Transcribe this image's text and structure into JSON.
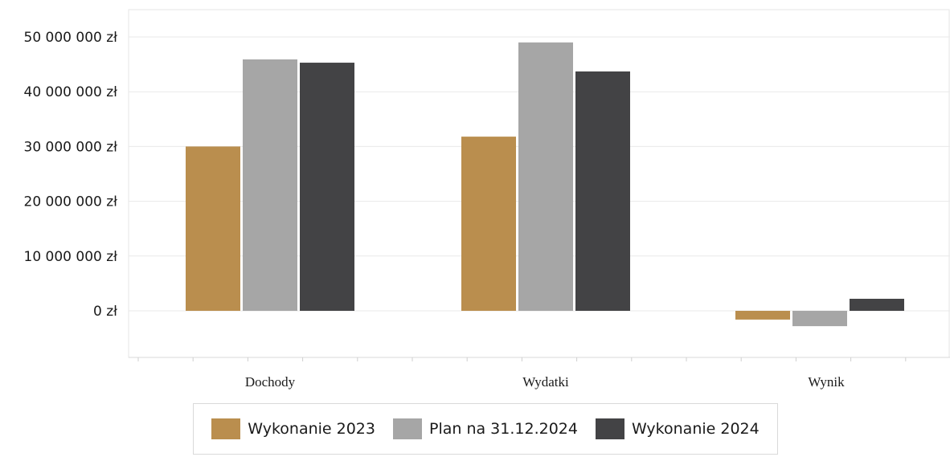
{
  "chart_data": {
    "type": "bar",
    "categories": [
      "Dochody",
      "Wydatki",
      "Wynik"
    ],
    "series": [
      {
        "name": "Wykonanie 2023",
        "color": "#BA8E4E",
        "values": [
          30000000,
          31800000,
          -1600000
        ]
      },
      {
        "name": "Plan na 31.12.2024",
        "color": "#A6A6A6",
        "values": [
          45900000,
          49000000,
          -2800000
        ]
      },
      {
        "name": "Wykonanie 2024",
        "color": "#434345",
        "values": [
          45300000,
          43700000,
          2200000
        ]
      }
    ],
    "y_ticks": [
      {
        "value": 50000000,
        "label": "50 000 000 zł"
      },
      {
        "value": 40000000,
        "label": "40 000 000 zł"
      },
      {
        "value": 30000000,
        "label": "30 000 000 zł"
      },
      {
        "value": 20000000,
        "label": "20 000 000 zł"
      },
      {
        "value": 10000000,
        "label": "10 000 000 zł"
      },
      {
        "value": 0,
        "label": "0 zł"
      }
    ],
    "ylim": [
      -7500000,
      55000000
    ],
    "grid": true,
    "legend_position": "bottom"
  }
}
